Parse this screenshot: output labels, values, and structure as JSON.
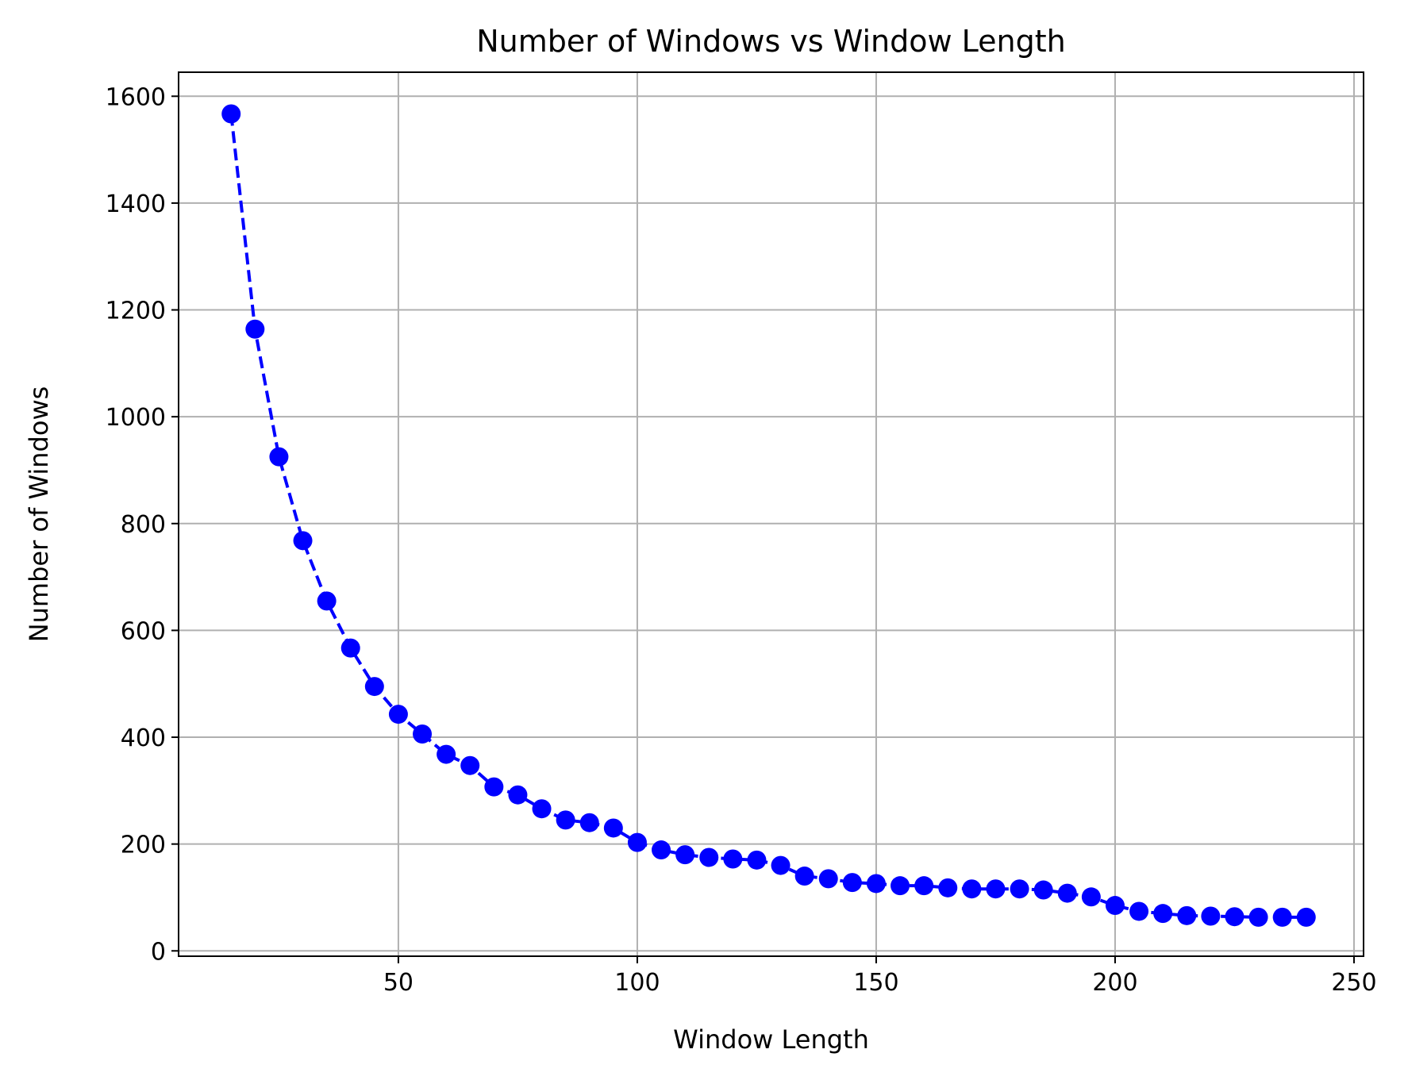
{
  "chart_data": {
    "type": "line",
    "title": "Number of Windows vs Window Length",
    "xlabel": "Window Length",
    "ylabel": "Number of Windows",
    "xlim": [
      4,
      252
    ],
    "ylim": [
      -10,
      1645
    ],
    "xticks": [
      50,
      100,
      150,
      200,
      250
    ],
    "yticks": [
      0,
      200,
      400,
      600,
      800,
      1000,
      1200,
      1400,
      1600
    ],
    "grid": true,
    "color": "#0000ff",
    "line_style": "dashed",
    "marker": "circle",
    "x": [
      15,
      20,
      25,
      30,
      35,
      40,
      45,
      50,
      55,
      60,
      65,
      70,
      75,
      80,
      85,
      90,
      95,
      100,
      105,
      110,
      115,
      120,
      125,
      130,
      135,
      140,
      145,
      150,
      155,
      160,
      165,
      170,
      175,
      180,
      185,
      190,
      195,
      200,
      205,
      210,
      215,
      220,
      225,
      230,
      235,
      240
    ],
    "y": [
      1567,
      1164,
      925,
      768,
      655,
      567,
      495,
      443,
      406,
      368,
      347,
      307,
      292,
      266,
      245,
      240,
      230,
      203,
      189,
      180,
      175,
      172,
      170,
      160,
      140,
      135,
      128,
      126,
      122,
      122,
      118,
      116,
      116,
      116,
      114,
      108,
      101,
      85,
      74,
      70,
      66,
      65,
      64,
      63,
      63,
      63
    ]
  }
}
